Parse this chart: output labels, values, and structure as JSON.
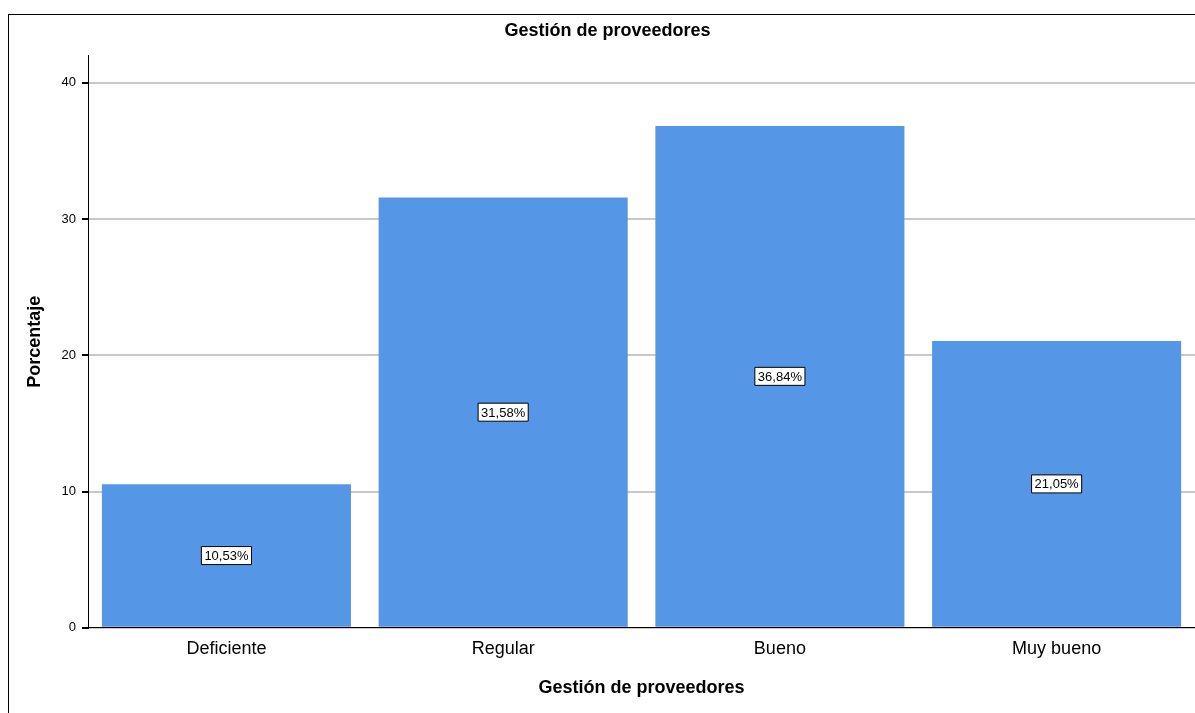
{
  "chart_data": {
    "type": "bar",
    "title": "Gestión de proveedores",
    "xlabel": "Gestión de proveedores",
    "ylabel": "Porcentaje",
    "categories": [
      "Deficiente",
      "Regular",
      "Bueno",
      "Muy bueno"
    ],
    "values": [
      10.53,
      31.58,
      36.84,
      21.05
    ],
    "value_labels": [
      "10,53%",
      "31,58%",
      "36,84%",
      "21,05%"
    ],
    "color": "#5596e6",
    "ylim": [
      0,
      42
    ],
    "yticks": [
      0,
      10,
      20,
      30,
      40
    ],
    "grid": "y",
    "legend": false
  }
}
